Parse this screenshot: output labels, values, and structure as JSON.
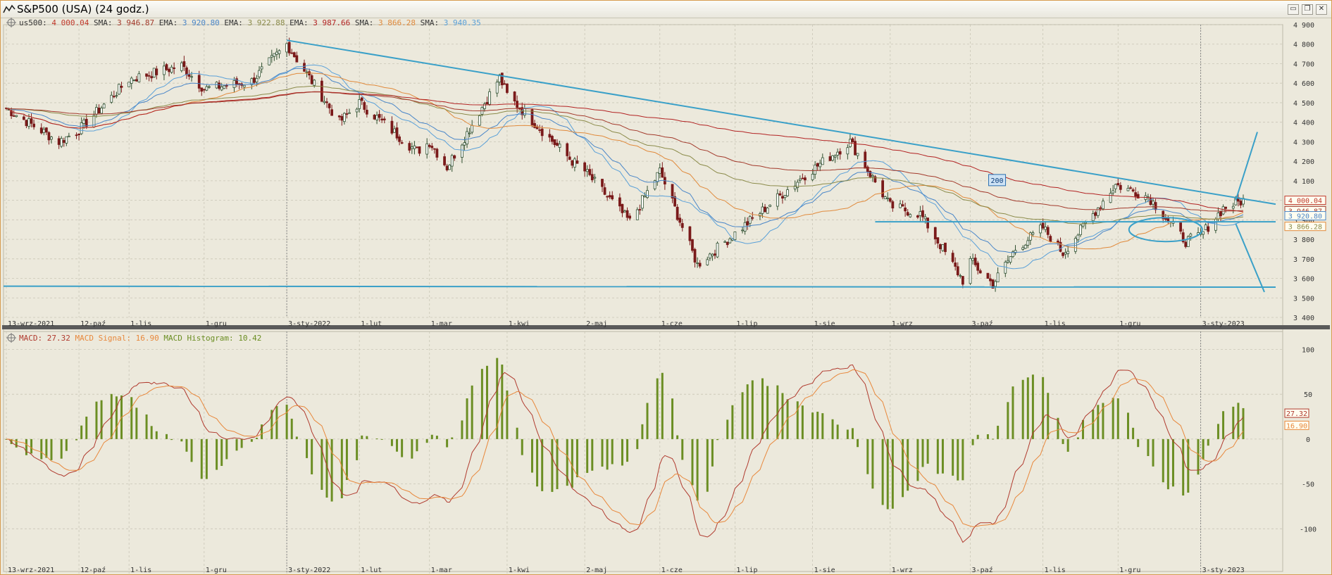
{
  "window": {
    "title": "S&P500 (USA) (24 godz.)",
    "buttons": [
      "minimize",
      "restore",
      "close"
    ]
  },
  "colors": {
    "background": "#ece9dc",
    "grid": "#c9c6b6",
    "candle_up": "#2f4f2f",
    "candle_down": "#7a1a1a",
    "sma_red": "#a33a2c",
    "ema_blue": "#4a86c8",
    "ema_olive": "#8b8b4a",
    "ema_red": "#b22222",
    "sma_orange": "#e08a3c",
    "sma_blue": "#5aa0d8",
    "trendline": "#3aa0c8",
    "macd": "#b03a2e",
    "macd_signal": "#e8883c",
    "histogram": "#6b8e23"
  },
  "legend_top": {
    "symbol": "us500:",
    "items": [
      {
        "name": "us500",
        "label": "us500:",
        "value": "4 000.04",
        "color": "#c0392b"
      },
      {
        "name": "SMA",
        "label": "SMA:",
        "value": "3 946.87",
        "color": "#a33a2c"
      },
      {
        "name": "EMA",
        "label": "EMA:",
        "value": "3 920.80",
        "color": "#4a86c8"
      },
      {
        "name": "EMA",
        "label": "EMA:",
        "value": "3 922.88",
        "color": "#8b8b4a"
      },
      {
        "name": "EMA",
        "label": "EMA:",
        "value": "3 987.66",
        "color": "#b22222"
      },
      {
        "name": "SMA",
        "label": "SMA:",
        "value": "3 866.28",
        "color": "#e08a3c"
      },
      {
        "name": "SMA",
        "label": "SMA:",
        "value": "3 940.35",
        "color": "#5aa0d8"
      }
    ]
  },
  "legend_bottom": {
    "items": [
      {
        "label": "MACD:",
        "value": "27.32",
        "color": "#b03a2e"
      },
      {
        "label": "MACD Signal:",
        "value": "16.90",
        "color": "#e8883c"
      },
      {
        "label": "MACD Histogram:",
        "value": "10.42",
        "color": "#6b8e23"
      }
    ]
  },
  "annotation_label": "200",
  "price_tags": [
    {
      "value": "4 000.04",
      "color": "#c0392b",
      "border": "#c0392b"
    },
    {
      "value": "3 946.87",
      "color": "#a33a2c",
      "border": "#a33a2c"
    },
    {
      "value": "3 920.80",
      "color": "#4a86c8",
      "border": "#4a86c8"
    },
    {
      "value": "3 866.28",
      "color": "#8b8b4a",
      "border": "#e08a3c"
    }
  ],
  "macd_tags": [
    {
      "value": "27.32",
      "color": "#b03a2e"
    },
    {
      "value": "16.90",
      "color": "#e8883c"
    }
  ],
  "chart_data": [
    {
      "type": "candlestick",
      "title": "us500",
      "y_ticks": [
        "4 900",
        "4 800",
        "4 700",
        "4 600",
        "4 500",
        "4 400",
        "4 300",
        "4 200",
        "4 100",
        "4 000",
        "3 900",
        "3 800",
        "3 700",
        "3 600",
        "3 500",
        "3 400"
      ],
      "ylim": [
        3400,
        4900
      ],
      "x_ticks": [
        "13-wrz-2021",
        "12-paź",
        "1-lis",
        "1-gru",
        "3-sty-2022",
        "1-lut",
        "1-mar",
        "1-kwi",
        "2-maj",
        "1-cze",
        "1-lip",
        "1-sie",
        "1-wrz",
        "3-paź",
        "1-lis",
        "1-gru",
        "3-sty-2023"
      ],
      "x_range": [
        "2021-09-13",
        "2023-01-20"
      ],
      "close_series": {
        "x": [
          "2021-09-13",
          "2021-10-04",
          "2021-10-12",
          "2021-11-01",
          "2021-11-22",
          "2021-12-01",
          "2021-12-20",
          "2022-01-03",
          "2022-01-24",
          "2022-02-01",
          "2022-02-24",
          "2022-03-01",
          "2022-03-08",
          "2022-03-29",
          "2022-04-01",
          "2022-04-27",
          "2022-05-02",
          "2022-05-20",
          "2022-06-01",
          "2022-06-16",
          "2022-07-01",
          "2022-07-29",
          "2022-08-16",
          "2022-09-01",
          "2022-09-13",
          "2022-09-30",
          "2022-10-03",
          "2022-10-12",
          "2022-10-21",
          "2022-11-01",
          "2022-11-09",
          "2022-11-30",
          "2022-12-13",
          "2022-12-28",
          "2023-01-03",
          "2023-01-12",
          "2023-01-20"
        ],
        "values": [
          4470,
          4300,
          4360,
          4620,
          4690,
          4570,
          4610,
          4800,
          4400,
          4500,
          4250,
          4300,
          4170,
          4630,
          4540,
          4200,
          4150,
          3890,
          4150,
          3670,
          3830,
          4130,
          4300,
          3970,
          3930,
          3590,
          3690,
          3570,
          3750,
          3860,
          3730,
          4080,
          4020,
          3790,
          3820,
          3960,
          4000
        ]
      },
      "indicators": [
        {
          "name": "SMA",
          "last": 3946.87
        },
        {
          "name": "EMA",
          "last": 3920.8
        },
        {
          "name": "EMA",
          "last": 3922.88
        },
        {
          "name": "EMA",
          "last": 3987.66
        },
        {
          "name": "SMA",
          "last": 3866.28
        },
        {
          "name": "SMA",
          "last": 3940.35
        }
      ],
      "last_close": 4000.04,
      "grid": true
    },
    {
      "type": "line",
      "title": "MACD",
      "y_ticks": [
        "100",
        "50",
        "0",
        "-50",
        "-100"
      ],
      "ylim": [
        -150,
        120
      ],
      "x_ticks": [
        "13-wrz-2021",
        "12-paź",
        "1-lis",
        "1-gru",
        "3-sty-2022",
        "1-lut",
        "1-mar",
        "1-kwi",
        "2-maj",
        "1-cze",
        "1-lip",
        "1-sie",
        "1-wrz",
        "3-paź",
        "1-lis",
        "1-gru",
        "3-sty-2023"
      ],
      "series": [
        {
          "name": "MACD",
          "last": 27.32
        },
        {
          "name": "MACD Signal",
          "last": 16.9
        },
        {
          "name": "MACD Histogram",
          "last": 10.42
        }
      ],
      "grid": true
    }
  ]
}
